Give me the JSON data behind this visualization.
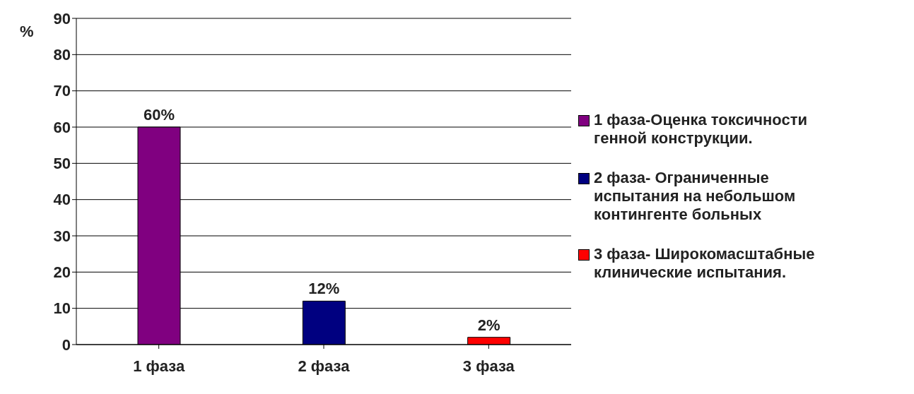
{
  "chart_data": {
    "type": "bar",
    "ylabel": "%",
    "categories": [
      "1 фаза",
      "2 фаза",
      "3 фаза"
    ],
    "stacked": true,
    "series": [
      {
        "name": "1 фаза-Оценка токсичности генной конструкции.",
        "color": "#800080",
        "values": [
          60,
          null,
          null
        ],
        "value_labels": [
          "60%",
          null,
          null
        ]
      },
      {
        "name": "2 фаза- Ограниченные испытания на небольшом контингенте больных",
        "color": "#000080",
        "values": [
          null,
          12,
          null
        ],
        "value_labels": [
          null,
          "12%",
          null
        ]
      },
      {
        "name": "3 фаза- Широкомасштабные клинические испытания.",
        "color": "#ff0000",
        "values": [
          null,
          null,
          2
        ],
        "value_labels": [
          null,
          null,
          "2%"
        ]
      }
    ],
    "ylim": [
      0,
      90
    ],
    "yticks": [
      0,
      10,
      20,
      30,
      40,
      50,
      60,
      70,
      80,
      90
    ],
    "grid": "y",
    "legend": "right"
  }
}
